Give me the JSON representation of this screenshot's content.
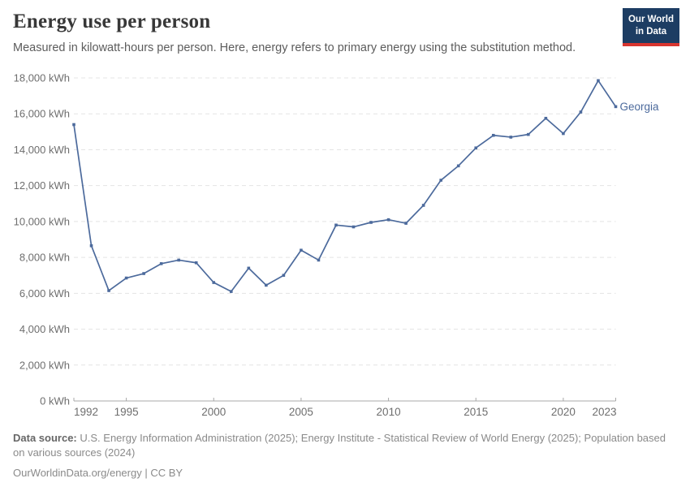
{
  "header": {
    "title": "Energy use per person",
    "subtitle": "Measured in kilowatt-hours per person. Here, energy refers to primary energy using the substitution method.",
    "logo": {
      "line1": "Our World",
      "line2": "in Data"
    }
  },
  "chart_data": {
    "type": "line",
    "title": "Energy use per person",
    "xlabel": "",
    "ylabel": "kWh per person",
    "xlim": [
      1992,
      2023
    ],
    "ylim": [
      0,
      18000
    ],
    "grid": "horizontal-dashed",
    "legend_position": "end-of-line-label",
    "x": [
      1992,
      1993,
      1994,
      1995,
      1996,
      1997,
      1998,
      1999,
      2000,
      2001,
      2002,
      2003,
      2004,
      2005,
      2006,
      2007,
      2008,
      2009,
      2010,
      2011,
      2012,
      2013,
      2014,
      2015,
      2016,
      2017,
      2018,
      2019,
      2020,
      2021,
      2022,
      2023
    ],
    "series": [
      {
        "name": "Georgia",
        "color": "#4c6a9c",
        "values": [
          15400,
          8650,
          6150,
          6850,
          7100,
          7650,
          7850,
          7700,
          6600,
          6100,
          7400,
          6450,
          7000,
          8400,
          7850,
          9800,
          9700,
          9950,
          10100,
          9900,
          10900,
          12300,
          13100,
          14100,
          14800,
          14700,
          14850,
          15750,
          14900,
          16100,
          17850,
          16400
        ]
      }
    ],
    "y_ticks": [
      {
        "value": 0,
        "label": "0 kWh"
      },
      {
        "value": 2000,
        "label": "2,000 kWh"
      },
      {
        "value": 4000,
        "label": "4,000 kWh"
      },
      {
        "value": 6000,
        "label": "6,000 kWh"
      },
      {
        "value": 8000,
        "label": "8,000 kWh"
      },
      {
        "value": 10000,
        "label": "10,000 kWh"
      },
      {
        "value": 12000,
        "label": "12,000 kWh"
      },
      {
        "value": 14000,
        "label": "14,000 kWh"
      },
      {
        "value": 16000,
        "label": "16,000 kWh"
      },
      {
        "value": 18000,
        "label": "18,000 kWh"
      }
    ],
    "x_ticks": [
      {
        "value": 1992,
        "label": "1992"
      },
      {
        "value": 1995,
        "label": "1995"
      },
      {
        "value": 2000,
        "label": "2000"
      },
      {
        "value": 2005,
        "label": "2005"
      },
      {
        "value": 2010,
        "label": "2010"
      },
      {
        "value": 2015,
        "label": "2015"
      },
      {
        "value": 2020,
        "label": "2020"
      },
      {
        "value": 2023,
        "label": "2023"
      }
    ]
  },
  "colors": {
    "line": "#4c6a9c",
    "gridline": "#e4e4e4",
    "axis": "#a8a8a8",
    "tick_label": "#6e6e6e",
    "logo_bg": "#1d3d63",
    "logo_stripe": "#d8352f"
  },
  "footer": {
    "source_label": "Data source:",
    "source_text": "U.S. Energy Information Administration (2025); Energy Institute - Statistical Review of World Energy (2025); Population based on various sources (2024)",
    "link_text": "OurWorldinData.org/energy | CC BY"
  }
}
